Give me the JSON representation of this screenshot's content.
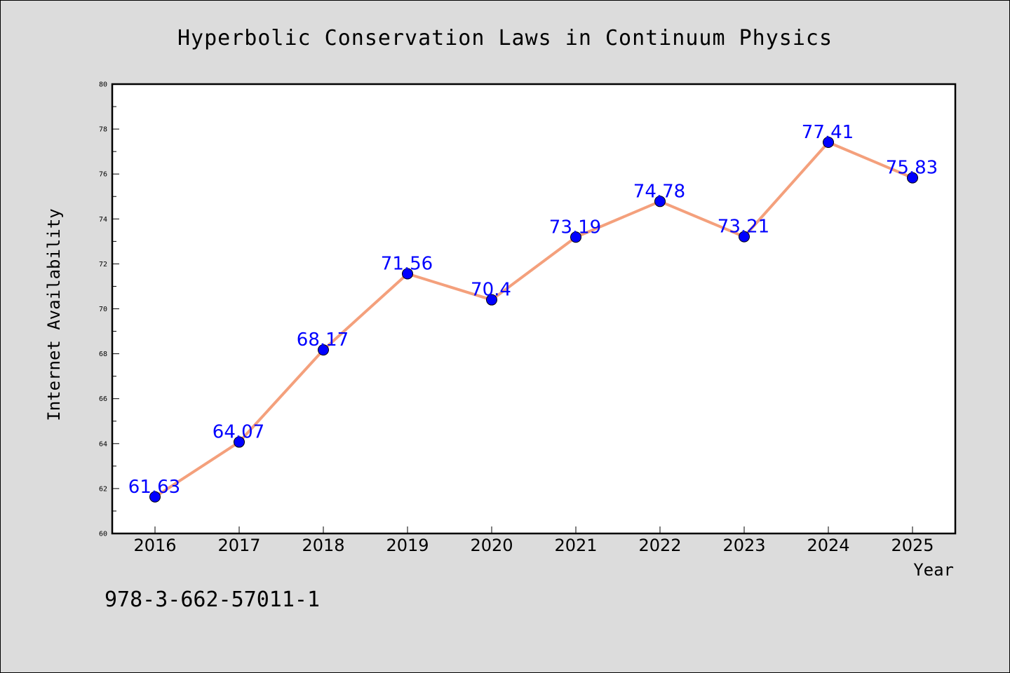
{
  "chart_data": {
    "type": "line",
    "title": "Hyperbolic Conservation Laws in Continuum Physics",
    "xlabel": "Year",
    "ylabel": "Internet Availability",
    "categories": [
      "2016",
      "2017",
      "2018",
      "2019",
      "2020",
      "2021",
      "2022",
      "2023",
      "2024",
      "2025"
    ],
    "values": [
      61.63,
      64.07,
      68.17,
      71.56,
      70.4,
      73.19,
      74.78,
      73.21,
      77.41,
      75.83
    ],
    "value_labels": [
      "61.63",
      "64.07",
      "68.17",
      "71.56",
      "70.4",
      "73.19",
      "74.78",
      "73.21",
      "77.41",
      "75.83"
    ],
    "ylim": [
      60,
      80
    ],
    "yticks": [
      "60",
      "62",
      "64",
      "66",
      "68",
      "70",
      "72",
      "74",
      "76",
      "78",
      "80"
    ],
    "grid": false,
    "colors": {
      "line": "#f4a07c",
      "marker": "#0000ff",
      "data_label": "#0000ff",
      "background": "#dcdcdc",
      "plot_background": "#ffffff"
    }
  },
  "footer": {
    "isbn": "978-3-662-57011-1"
  }
}
